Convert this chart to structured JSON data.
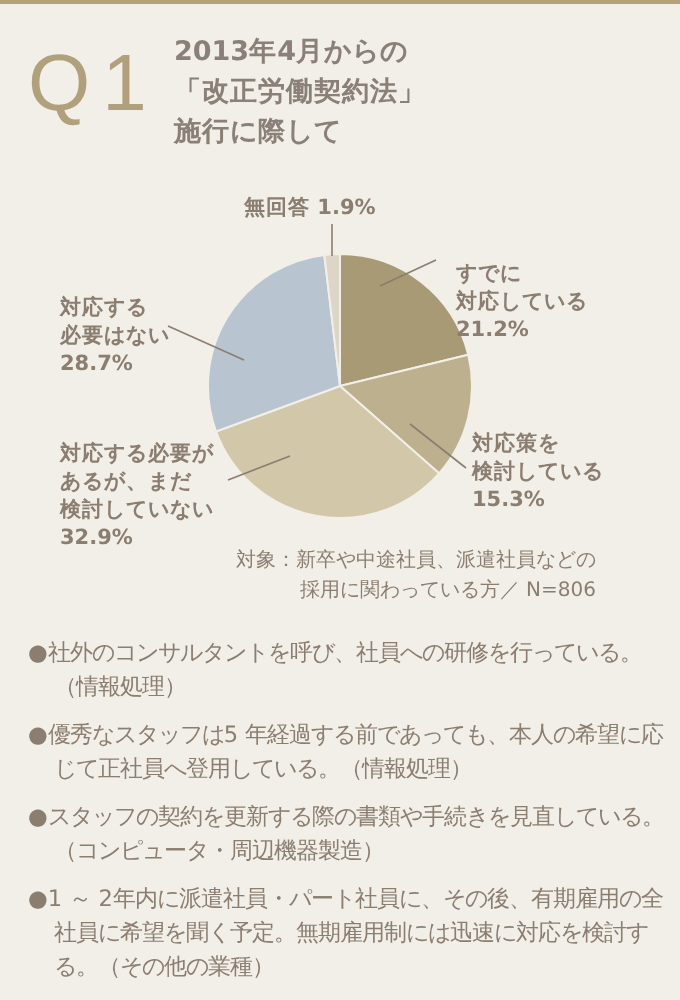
{
  "chart_data": {
    "type": "pie",
    "title": "Q1",
    "subtitle": "2013年4月からの「改正労働契約法」施行に際して",
    "categories": [
      "すでに対応している",
      "対応策を検討している",
      "対応する必要があるが、まだ検討していない",
      "対応する必要はない",
      "無回答"
    ],
    "values": [
      21.2,
      15.3,
      32.9,
      28.7,
      1.9
    ],
    "value_labels": [
      "21.2%",
      "15.3%",
      "32.9%",
      "28.7%",
      "1.9%"
    ],
    "colors": [
      "#a89a74",
      "#bdb08f",
      "#d2c7a9",
      "#b8c4d0",
      "#ddd6c6"
    ],
    "annotations": [
      "対象：新卒や中途社員、派遣社員などの採用に関わっている方／ N=806",
      "●社外のコンサルタントを呼び、社員への研修を行っている。（情報処理）",
      "●優秀なスタッフは5 年経過する前であっても、本人の希望に応じて正社員へ登用している。（情報処理）",
      "●スタッフの契約を更新する際の書類や手続きを見直している。（コンピュータ・周辺機器製造）",
      "●1 ～ 2年内に派遣社員・パート社員に、その後、有期雇用の全社員に希望を聞く予定。無期雇用制には迅速に対応を検討する。（その他の業種）"
    ]
  }
}
